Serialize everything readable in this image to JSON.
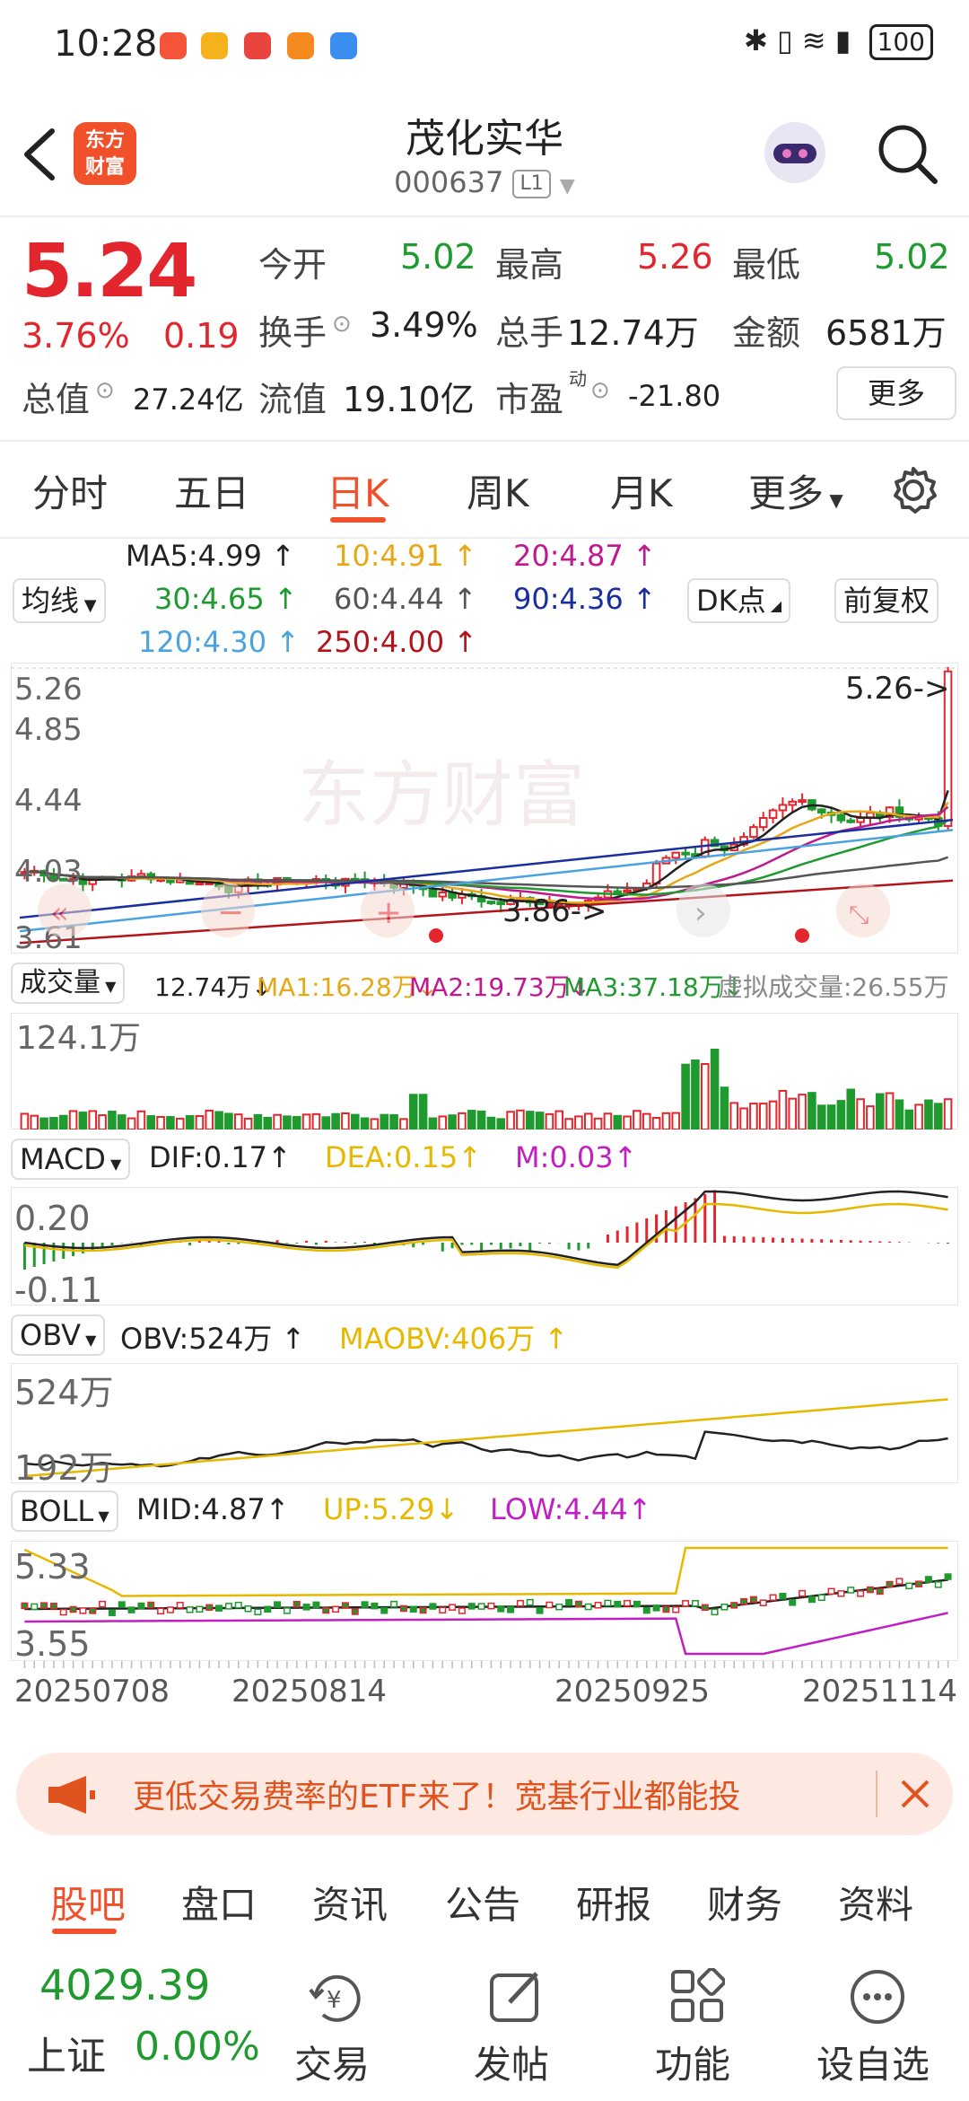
{
  "status_bar": {
    "time": "10:28",
    "battery": "100"
  },
  "header": {
    "back": "‹",
    "logo_line1": "东方",
    "logo_line2": "财富",
    "title": "茂化实华",
    "code": "000637",
    "level": "L1"
  },
  "quote": {
    "price": "5.24",
    "change_pct": "3.76%",
    "change": "0.19",
    "open_label": "今开",
    "open": "5.02",
    "high_label": "最高",
    "high": "5.26",
    "low_label": "最低",
    "low": "5.02",
    "turnover_label": "换手",
    "turnover": "3.49%",
    "volume_label": "总手",
    "volume": "12.74万",
    "amount_label": "金额",
    "amount": "6581万",
    "mktcap_label": "总值",
    "mktcap": "27.24亿",
    "float_label": "流值",
    "float": "19.10亿",
    "pe_label": "市盈",
    "pe_sup": "动",
    "pe": "-21.80",
    "more": "更多"
  },
  "tabs": [
    "分时",
    "五日",
    "日K",
    "周K",
    "月K",
    "更多"
  ],
  "ma_bar": {
    "selector": "均线",
    "items": [
      {
        "text": "MA5:4.99",
        "color": "#222222"
      },
      {
        "text": "10:4.91",
        "color": "#e6a817"
      },
      {
        "text": "20:4.87",
        "color": "#c2188f"
      },
      {
        "text": "30:4.65",
        "color": "#1e9a2e"
      },
      {
        "text": "60:4.44",
        "color": "#555555"
      },
      {
        "text": "90:4.36",
        "color": "#1a2e9e"
      },
      {
        "text": "120:4.30",
        "color": "#4aa3e0"
      },
      {
        "text": "250:4.00",
        "color": "#b3141b"
      }
    ],
    "dk_button": "DK点",
    "fq_button": "前复权"
  },
  "kline": {
    "y_labels": [
      "5.26",
      "4.85",
      "4.44",
      "4.03",
      "3.61"
    ],
    "max_marker": "5.26->",
    "min_marker": "3.86->",
    "watermark": "东方财富"
  },
  "volume_panel": {
    "selector": "成交量",
    "value": "12.74万",
    "ma1": "MA1:16.28万",
    "ma2": "MA2:19.73万",
    "ma3": "MA3:37.18万",
    "virtual": "虚拟成交量:26.55万",
    "y_max": "124.1万"
  },
  "macd_panel": {
    "selector": "MACD",
    "dif": "DIF:0.17",
    "dea": "DEA:0.15",
    "m": "M:0.03",
    "y_top": "0.20",
    "y_bottom": "-0.11"
  },
  "obv_panel": {
    "selector": "OBV",
    "obv": "OBV:524万",
    "maobv": "MAOBV:406万",
    "y_top": "524万",
    "y_bottom": "192万"
  },
  "boll_panel": {
    "selector": "BOLL",
    "mid": "MID:4.87",
    "up": "UP:5.29",
    "low": "LOW:4.44",
    "y_top": "5.33",
    "y_bottom": "3.55"
  },
  "dates": [
    "20250708",
    "20250814",
    "20250925",
    "20251114"
  ],
  "banner": {
    "text": "更低交易费率的ETF来了！宽基行业都能投"
  },
  "bottom_tabs": [
    "股吧",
    "盘口",
    "资讯",
    "公告",
    "研报",
    "财务",
    "资料"
  ],
  "bottom_nav": {
    "index_value": "4029.39",
    "index_name": "上证",
    "index_change": "0.00%",
    "items": [
      {
        "label": "交易",
        "icon": "trade-icon"
      },
      {
        "label": "发帖",
        "icon": "post-icon"
      },
      {
        "label": "功能",
        "icon": "grid-icon"
      },
      {
        "label": "设自选",
        "icon": "add-watch-icon"
      }
    ]
  },
  "colors": {
    "up": "#e3262d",
    "down": "#1e9a2e",
    "accent": "#f0512b",
    "ma10": "#e6a817",
    "ma20": "#c2188f"
  }
}
